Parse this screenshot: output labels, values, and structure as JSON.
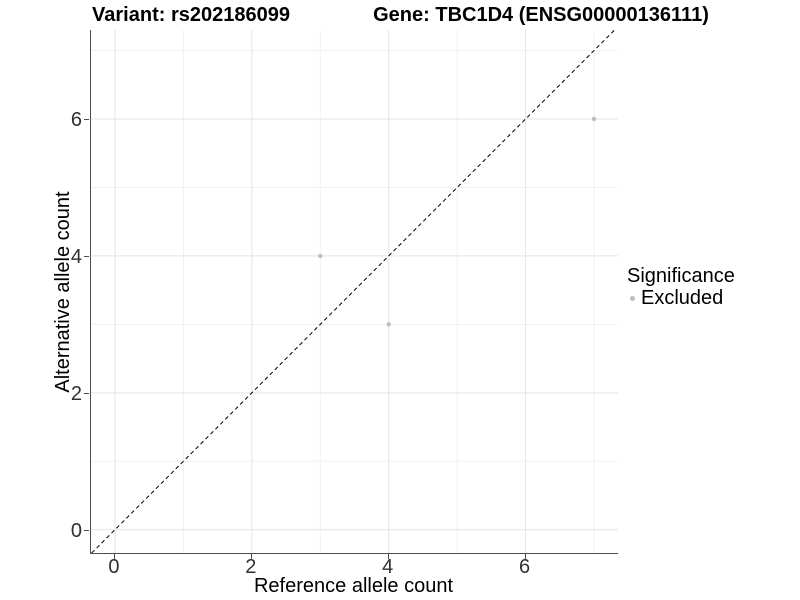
{
  "chart_data": {
    "type": "scatter",
    "title_left": "Variant: rs202186099",
    "title_right": "Gene: TBC1D4 (ENSG00000136111)",
    "xlabel": "Reference allele count",
    "ylabel": "Alternative allele count",
    "xlim": [
      -0.35,
      7.35
    ],
    "ylim": [
      -0.34,
      7.3
    ],
    "x_ticks": {
      "values": [
        0,
        2,
        4,
        6
      ],
      "labels": [
        "0",
        "2",
        "4",
        "6"
      ]
    },
    "y_ticks": {
      "values": [
        0,
        2,
        4,
        6
      ],
      "labels": [
        "0",
        "2",
        "4",
        "6"
      ]
    },
    "grid": {
      "major_x": [
        0,
        2,
        4,
        6
      ],
      "minor_x": [
        1,
        3,
        5,
        7
      ],
      "major_y": [
        0,
        2,
        4,
        6
      ],
      "minor_y": [
        1,
        3,
        5,
        7
      ]
    },
    "reference_line": {
      "type": "identity",
      "slope": 1,
      "intercept": 0,
      "style": "dashed"
    },
    "series": [
      {
        "name": "Excluded",
        "color": "#bebebe",
        "points": [
          [
            3,
            4
          ],
          [
            4,
            3
          ],
          [
            7,
            6
          ]
        ]
      }
    ],
    "legend": {
      "title": "Significance",
      "position": "right"
    }
  },
  "colors": {
    "background": "#ffffff",
    "grid_major": "#e4e4e4",
    "grid_minor": "#f1f1f1",
    "axis_line": "#4d4d4d",
    "tick_text": "#303030",
    "diagonal": "#000000",
    "point": "#bebebe"
  }
}
